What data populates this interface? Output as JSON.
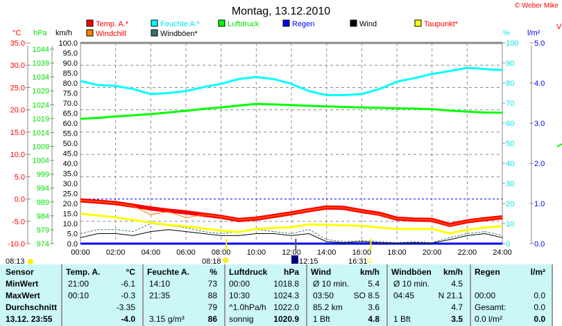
{
  "title": "Montag, 13.12.2010",
  "copyright": "© Weber Mike",
  "right_edge_label": "V",
  "legend": [
    {
      "label": "Temp. A.*",
      "color": "#ff0000",
      "text_color": "#ff0000"
    },
    {
      "label": "Feuchte A.*",
      "color": "#00ffff",
      "text_color": "#00e5e5"
    },
    {
      "label": "Luftdruck",
      "color": "#00ff00",
      "text_color": "#00e000"
    },
    {
      "label": "Regen",
      "color": "#0000ff",
      "text_color": "#0000ff"
    },
    {
      "label": "Wind",
      "color": "#000000",
      "text_color": "#000000"
    },
    {
      "label": "Taupunkt*",
      "color": "#ffff00",
      "text_color": "#ff0000"
    },
    {
      "label": "Windchill",
      "color": "#ff8000",
      "text_color": "#ff0000"
    },
    {
      "label": "Windböen*",
      "color": "#3f6f6f",
      "text_color": "#000000"
    }
  ],
  "axis_units": {
    "temp": "°C",
    "pressure": "hPa",
    "wind": "km/h",
    "humidity": "%",
    "rain": "l/m²"
  },
  "sun_moon": {
    "sunrise": "08:13",
    "noon": "08:18",
    "moon": "12:15",
    "sunset": "16:31"
  },
  "chart_data": {
    "type": "line",
    "title": "Montag, 13.12.2010",
    "x_hours": [
      0,
      1,
      2,
      3,
      4,
      5,
      6,
      7,
      8,
      9,
      10,
      11,
      12,
      13,
      14,
      15,
      16,
      17,
      18,
      19,
      20,
      21,
      22,
      23,
      24
    ],
    "xticks": [
      "00:00",
      "02:00",
      "04:00",
      "06:00",
      "08:00",
      "10:00",
      "12:00",
      "14:00",
      "16:00",
      "18:00",
      "20:00",
      "22:00",
      "24:00"
    ],
    "axes": {
      "temp": {
        "min": -10,
        "max": 35,
        "ticks": [
          "35.0",
          "30.0",
          "25.0",
          "20.0",
          "15.0",
          "10.0",
          "5.0",
          "0.0",
          "-5.0",
          "-10.0"
        ]
      },
      "pressure": {
        "min": 974,
        "max": 1044,
        "ticks": [
          "1044",
          "1039",
          "1034",
          "1029",
          "1024",
          "1019",
          "1014",
          "1009",
          "1004",
          "999",
          "994",
          "989",
          "984",
          "979",
          "974"
        ]
      },
      "wind": {
        "min": 0,
        "max": 100,
        "ticks": [
          "100.0",
          "95.0",
          "90.0",
          "85.0",
          "80.0",
          "75.0",
          "70.0",
          "65.0",
          "60.0",
          "55.0",
          "50.0",
          "45.0",
          "40.0",
          "35.0",
          "30.0",
          "25.0",
          "20.0",
          "15.0",
          "10.0",
          "5.0",
          "0.0"
        ]
      },
      "humidity": {
        "min": 0,
        "max": 100,
        "ticks": [
          "100",
          "90",
          "80",
          "70",
          "60",
          "50",
          "40",
          "30",
          "20",
          "10",
          "0"
        ]
      },
      "rain": {
        "min": 0,
        "max": 5,
        "ticks": [
          "5.0",
          "4.0",
          "3.0",
          "2.0",
          "1.0",
          "0.0"
        ]
      }
    },
    "series": [
      {
        "name": "Temp. A.*",
        "axis": "temp",
        "values": [
          -0.3,
          -0.6,
          -0.9,
          -1.5,
          -2.1,
          -2.6,
          -3.0,
          -3.5,
          -4.0,
          -4.7,
          -4.4,
          -3.8,
          -3.2,
          -2.5,
          -1.9,
          -2.0,
          -2.7,
          -3.3,
          -4.4,
          -4.6,
          -4.7,
          -5.8,
          -5.0,
          -4.5,
          -4.1
        ]
      },
      {
        "name": "Windchill",
        "axis": "temp",
        "values": [
          -0.3,
          -0.6,
          -0.9,
          -1.6,
          -3.5,
          -2.8,
          -4.2,
          -3.5,
          -4.0,
          -4.7,
          -4.4,
          -3.8,
          -3.2,
          -2.5,
          -1.9,
          -2.0,
          -2.7,
          -3.4,
          -4.4,
          -4.6,
          -4.7,
          -5.9,
          -5.0,
          -4.5,
          -4.1
        ]
      },
      {
        "name": "Feuchte A.*",
        "axis": "humidity",
        "values": [
          81,
          79,
          78.6,
          77,
          74.5,
          75,
          76,
          78,
          79.6,
          82,
          83,
          82,
          79.6,
          76,
          74,
          74,
          74.5,
          77,
          80.7,
          82.5,
          84.5,
          86,
          87.6,
          87,
          86.5
        ]
      },
      {
        "name": "Luftdruck",
        "axis": "pressure",
        "values": [
          1018.9,
          1019.3,
          1019.8,
          1020.2,
          1020.6,
          1021.2,
          1021.8,
          1022.5,
          1023,
          1023.7,
          1024.3,
          1024.1,
          1023.9,
          1023.6,
          1023.4,
          1023.2,
          1023,
          1022.9,
          1022.7,
          1022.6,
          1022.4,
          1021.9,
          1021.5,
          1021.2,
          1021.1
        ]
      },
      {
        "name": "Taupunkt*",
        "axis": "temp",
        "values": [
          -3.3,
          -3.7,
          -4.1,
          -4.7,
          -5.3,
          -5.8,
          -6.1,
          -6.6,
          -7.05,
          -7.4,
          -6.7,
          -6.5,
          -6.3,
          -5.7,
          -5.8,
          -5.9,
          -6.0,
          -6.4,
          -6.7,
          -6.7,
          -6.7,
          -7.7,
          -6.9,
          -6.4,
          -6.1
        ]
      },
      {
        "name": "Wind",
        "axis": "wind",
        "values": [
          3,
          5,
          5,
          4,
          6,
          7,
          6,
          5,
          4,
          4,
          5,
          5,
          4,
          5,
          1,
          0.5,
          1,
          0.5,
          0.3,
          0.5,
          0.3,
          2,
          4,
          5,
          3
        ]
      },
      {
        "name": "Windböen*",
        "axis": "wind",
        "values": [
          5,
          7,
          7,
          6,
          10,
          9,
          8,
          6,
          5,
          6,
          7,
          6,
          5,
          7,
          2,
          1,
          1.5,
          1,
          0.5,
          1,
          0.5,
          3,
          5,
          6,
          4
        ]
      },
      {
        "name": "Regen",
        "axis": "rain",
        "values": [
          0,
          0,
          0,
          0,
          0,
          0,
          0,
          0,
          0,
          0,
          0,
          0,
          0,
          0,
          0,
          0,
          0,
          0,
          0,
          0,
          0,
          0,
          0,
          0,
          0
        ]
      }
    ],
    "reference_lines": [
      {
        "axis": "temp",
        "value": 0,
        "color": "#0000ff"
      }
    ],
    "grid": true
  },
  "table": {
    "row_labels": [
      "Sensor",
      "MinWert",
      "MaxWert",
      "Durchschnitt",
      "13.12. 23:55"
    ],
    "groups": [
      {
        "header": "Temp. A.",
        "unit": "°C",
        "rows": [
          [
            "21:00",
            "-6.1"
          ],
          [
            "00:10",
            "-0.3"
          ],
          [
            "",
            "-3.35"
          ],
          [
            "",
            "-4.0"
          ]
        ]
      },
      {
        "header": "Feuchte A.",
        "unit": "%",
        "rows": [
          [
            "14:10",
            "73"
          ],
          [
            "21:35",
            "88"
          ],
          [
            "",
            "79"
          ],
          [
            "3.15 g/m³",
            "86"
          ]
        ]
      },
      {
        "header": "Luftdruck",
        "unit": "hPa",
        "rows": [
          [
            "00:00",
            "1018.8"
          ],
          [
            "10:30",
            "1024.3"
          ],
          [
            "^1.0hPa/h",
            "1022.0"
          ],
          [
            "sonnig",
            "1020.9"
          ]
        ]
      },
      {
        "header": "Wind",
        "unit": "km/h",
        "rows": [
          [
            "Ø 10 min.",
            "5.4"
          ],
          [
            "03:50",
            "SO 8.5"
          ],
          [
            "85.2 km",
            "3.6"
          ],
          [
            "1 Bft",
            "4.8"
          ]
        ]
      },
      {
        "header": "Windböen",
        "unit": "km/h",
        "rows": [
          [
            "Ø 10 min.",
            "4.5"
          ],
          [
            "04:45",
            "N 21.1"
          ],
          [
            "",
            "4.7"
          ],
          [
            "1 Bft",
            "3.5"
          ]
        ]
      },
      {
        "header": "Regen",
        "unit": "l/m²",
        "rows": [
          [
            "",
            ""
          ],
          [
            "00:00",
            "0.0"
          ],
          [
            "Gesamt:",
            "0.0"
          ],
          [
            "0.0 l/m²",
            "0.0"
          ]
        ]
      }
    ]
  }
}
